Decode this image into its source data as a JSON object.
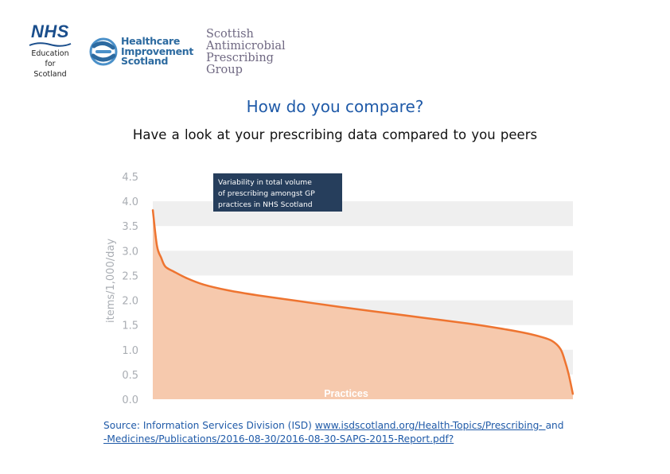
{
  "logos": {
    "nhs": {
      "mark": "NHS",
      "lines": [
        "Education",
        "for",
        "Scotland"
      ]
    },
    "his": {
      "lines": [
        "Healthcare",
        "Improvement",
        "Scotland"
      ]
    },
    "sapg": {
      "lines": [
        "Scottish",
        "Antimicrobial",
        "Prescribing",
        "Group"
      ]
    }
  },
  "title": "How do you compare?",
  "subtitle": "Have a  look at your prescribing data compared to you peers",
  "source": {
    "prefix": "Source: Information Services Division (ISD) ",
    "link1": "www.isdscotland.org/Health-Topics/Prescribing- ",
    "mid": " and",
    "link2": "-Medicines/Publications/2016-08-30/2016-08-30-SAPG-2015-Report.pdf?"
  },
  "colors": {
    "line": "#ee7430",
    "area": "#f6c6a9",
    "band": "#efefef",
    "axis_text": "#a9adb3",
    "callout_bg": "#263e5c"
  },
  "chart_data": {
    "type": "area",
    "xlabel": "Practices",
    "ylabel": "items/1,000/day",
    "ylim": [
      0,
      4.5
    ],
    "yticks": [
      "0.0",
      "0.5",
      "1.0",
      "1.5",
      "2.0",
      "2.5",
      "3.0",
      "3.5",
      "4.0",
      "4.5"
    ],
    "ytick_values": [
      0,
      0.5,
      1.0,
      1.5,
      2.0,
      2.5,
      3.0,
      3.5,
      4.0,
      4.5
    ],
    "grid": "alternating horizontal bands",
    "annotation": "Variability in total volume of prescribing amongst GP practices in NHS Scotland",
    "series": [
      {
        "x": [
          0,
          0.01,
          0.02,
          0.03,
          0.05,
          0.08,
          0.12,
          0.18,
          0.25,
          0.35,
          0.45,
          0.55,
          0.65,
          0.75,
          0.82,
          0.88,
          0.92,
          0.95,
          0.97,
          0.98,
          0.99,
          1.0
        ],
        "values": [
          3.83,
          3.1,
          2.86,
          2.68,
          2.58,
          2.45,
          2.32,
          2.2,
          2.1,
          1.98,
          1.86,
          1.75,
          1.64,
          1.53,
          1.44,
          1.35,
          1.27,
          1.18,
          1.02,
          0.8,
          0.5,
          0.1
        ]
      }
    ]
  }
}
